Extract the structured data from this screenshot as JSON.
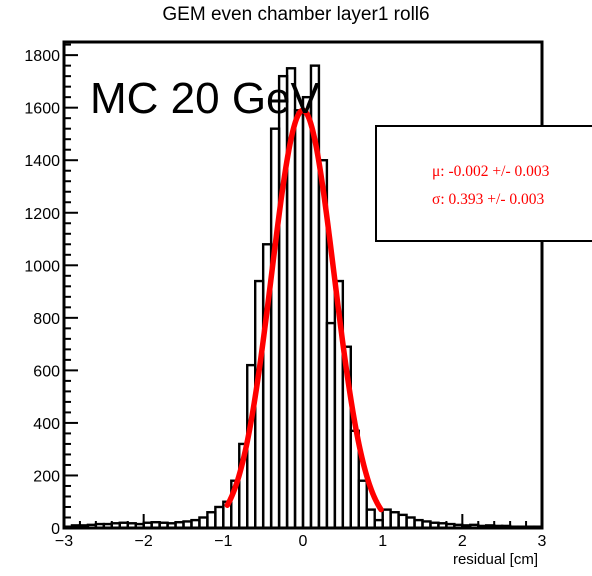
{
  "chart_data": {
    "type": "bar",
    "title": "GEM even chamber layer1 roll6",
    "xlabel": "residual [cm]",
    "ylabel": "",
    "xlim": [
      -3,
      3
    ],
    "ylim": [
      0,
      1850
    ],
    "xticks": [
      "−3",
      "−2",
      "−1",
      "0",
      "1",
      "2",
      "3"
    ],
    "yticks": [
      "0",
      "200",
      "400",
      "600",
      "800",
      "1000",
      "1200",
      "1400",
      "1600",
      "1800"
    ],
    "annotation": "MC 20 GeV",
    "fit_stats": {
      "mu": "μ: -0.002 +/- 0.003",
      "sigma": "σ: 0.393 +/- 0.003"
    },
    "histogram": {
      "bin_width": 0.1,
      "bin_low_edges": [
        -3.0,
        -2.9,
        -2.8,
        -2.7,
        -2.6,
        -2.5,
        -2.4,
        -2.3,
        -2.2,
        -2.1,
        -2.0,
        -1.9,
        -1.8,
        -1.7,
        -1.6,
        -1.5,
        -1.4,
        -1.3,
        -1.2,
        -1.1,
        -1.0,
        -0.9,
        -0.8,
        -0.7,
        -0.6,
        -0.5,
        -0.4,
        -0.3,
        -0.2,
        -0.1,
        0.0,
        0.1,
        0.2,
        0.3,
        0.4,
        0.5,
        0.6,
        0.7,
        0.8,
        0.9,
        1.0,
        1.1,
        1.2,
        1.3,
        1.4,
        1.5,
        1.6,
        1.7,
        1.8,
        1.9,
        2.0,
        2.1,
        2.2,
        2.3,
        2.4,
        2.5,
        2.6,
        2.7,
        2.8,
        2.9
      ],
      "counts": [
        5,
        10,
        10,
        12,
        15,
        15,
        18,
        20,
        18,
        15,
        20,
        22,
        20,
        18,
        22,
        25,
        30,
        40,
        60,
        80,
        100,
        180,
        320,
        620,
        940,
        1080,
        1520,
        1720,
        1750,
        1590,
        1640,
        1760,
        1400,
        780,
        940,
        690,
        370,
        180,
        70,
        30,
        70,
        60,
        50,
        40,
        30,
        25,
        20,
        18,
        15,
        12,
        10,
        12,
        8,
        10,
        8,
        8,
        5,
        5,
        5,
        5
      ]
    },
    "fit": {
      "type": "gaussian",
      "amplitude": 1590,
      "mean": -0.002,
      "sigma": 0.393,
      "range": [
        -0.95,
        0.98
      ],
      "color": "#ff0000"
    },
    "colors": {
      "histogram": "#000000",
      "fit": "#ff0000"
    }
  }
}
